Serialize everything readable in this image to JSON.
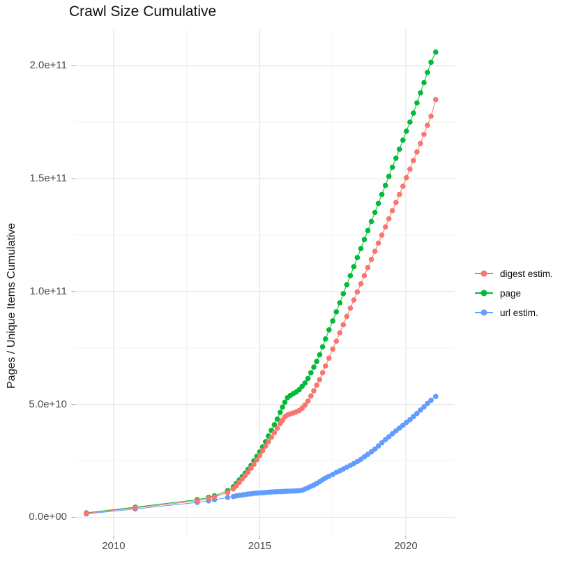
{
  "title": "Crawl Size Cumulative",
  "y_axis_title": "Pages / Unique Items Cumulative",
  "colors": {
    "digest": "#F8766D",
    "page": "#00BA38",
    "url": "#619CFF",
    "grid_major": "#E5E5E5",
    "grid_minor": "#F2F2F2",
    "tick_mark": "#B3B3B3",
    "axis_text": "#4D4D4D",
    "title_text": "#111111"
  },
  "chart_data": {
    "type": "scatter",
    "title": "Crawl Size Cumulative",
    "xlabel": "",
    "ylabel": "Pages / Unique Items Cumulative",
    "legend_position": "right",
    "grid": true,
    "xlim": [
      2008.69,
      2021.67
    ],
    "ylim_e9": [
      -8.2,
      216.1
    ],
    "x_ticks": {
      "values": [
        2010,
        2015,
        2020
      ],
      "labels": [
        "2010",
        "2015",
        "2020"
      ]
    },
    "x_minor": [
      2012.5,
      2017.5
    ],
    "y_ticks": {
      "values_e9": [
        0,
        50,
        100,
        150,
        200
      ],
      "labels": [
        "0.0e+00",
        "5.0e+10",
        "1.0e+11",
        "1.5e+11",
        "2.0e+11"
      ]
    },
    "y_minor_e9": [
      25,
      75,
      125,
      175
    ],
    "unit_note": "values_e9 are in billions (1e9)",
    "series": [
      {
        "name": "digest estim.",
        "color": "#F8766D",
        "points": [
          [
            2009.07,
            1.8
          ],
          [
            2010.74,
            4.2
          ],
          [
            2012.86,
            7.3
          ],
          [
            2013.25,
            8.3
          ],
          [
            2013.45,
            9.0
          ],
          [
            2013.9,
            11.0
          ],
          [
            2014.1,
            12.6
          ],
          [
            2014.2,
            14.0
          ],
          [
            2014.3,
            15.5
          ],
          [
            2014.4,
            17.0
          ],
          [
            2014.5,
            18.5
          ],
          [
            2014.6,
            20.0
          ],
          [
            2014.7,
            21.7
          ],
          [
            2014.8,
            23.5
          ],
          [
            2014.9,
            25.5
          ],
          [
            2015.0,
            27.5
          ],
          [
            2015.1,
            29.5
          ],
          [
            2015.2,
            31.5
          ],
          [
            2015.3,
            33.5
          ],
          [
            2015.4,
            35.5
          ],
          [
            2015.5,
            37.5
          ],
          [
            2015.6,
            39.5
          ],
          [
            2015.7,
            41.5
          ],
          [
            2015.78,
            43.0
          ],
          [
            2015.86,
            44.5
          ],
          [
            2015.95,
            45.3
          ],
          [
            2016.05,
            45.8
          ],
          [
            2016.15,
            46.2
          ],
          [
            2016.25,
            46.7
          ],
          [
            2016.35,
            47.3
          ],
          [
            2016.45,
            48.3
          ],
          [
            2016.55,
            49.7
          ],
          [
            2016.65,
            51.5
          ],
          [
            2016.75,
            53.7
          ],
          [
            2016.85,
            56.0
          ],
          [
            2016.95,
            58.5
          ],
          [
            2017.05,
            61.0
          ],
          [
            2017.15,
            64.0
          ],
          [
            2017.25,
            67.0
          ],
          [
            2017.37,
            70.5
          ],
          [
            2017.5,
            74.5
          ],
          [
            2017.62,
            78.0
          ],
          [
            2017.74,
            81.7
          ],
          [
            2017.86,
            85.3
          ],
          [
            2017.98,
            89.0
          ],
          [
            2018.1,
            92.6
          ],
          [
            2018.22,
            96.2
          ],
          [
            2018.34,
            99.8
          ],
          [
            2018.46,
            103.4
          ],
          [
            2018.58,
            107.0
          ],
          [
            2018.7,
            110.6
          ],
          [
            2018.82,
            114.2
          ],
          [
            2018.94,
            117.8
          ],
          [
            2019.06,
            121.4
          ],
          [
            2019.18,
            125.0
          ],
          [
            2019.3,
            128.6
          ],
          [
            2019.42,
            132.2
          ],
          [
            2019.54,
            135.8
          ],
          [
            2019.66,
            139.4
          ],
          [
            2019.78,
            143.0
          ],
          [
            2019.9,
            146.6
          ],
          [
            2020.02,
            150.4
          ],
          [
            2020.14,
            154.2
          ],
          [
            2020.26,
            158.0
          ],
          [
            2020.38,
            161.8
          ],
          [
            2020.5,
            165.6
          ],
          [
            2020.62,
            169.6
          ],
          [
            2020.74,
            173.6
          ],
          [
            2020.86,
            177.6
          ],
          [
            2021.02,
            185.0
          ]
        ]
      },
      {
        "name": "page",
        "color": "#00BA38",
        "points": [
          [
            2009.07,
            2.0
          ],
          [
            2010.74,
            4.5
          ],
          [
            2012.86,
            7.8
          ],
          [
            2013.25,
            8.8
          ],
          [
            2013.45,
            9.5
          ],
          [
            2013.9,
            11.8
          ],
          [
            2014.1,
            13.5
          ],
          [
            2014.2,
            15.0
          ],
          [
            2014.3,
            16.5
          ],
          [
            2014.4,
            18.0
          ],
          [
            2014.5,
            19.5
          ],
          [
            2014.6,
            21.2
          ],
          [
            2014.7,
            23.0
          ],
          [
            2014.8,
            25.0
          ],
          [
            2014.9,
            27.0
          ],
          [
            2015.0,
            29.0
          ],
          [
            2015.1,
            31.2
          ],
          [
            2015.2,
            33.5
          ],
          [
            2015.3,
            36.0
          ],
          [
            2015.4,
            38.5
          ],
          [
            2015.5,
            41.0
          ],
          [
            2015.6,
            43.5
          ],
          [
            2015.7,
            46.5
          ],
          [
            2015.78,
            48.8
          ],
          [
            2015.86,
            51.0
          ],
          [
            2015.95,
            53.0
          ],
          [
            2016.05,
            54.0
          ],
          [
            2016.15,
            54.8
          ],
          [
            2016.25,
            55.5
          ],
          [
            2016.35,
            56.5
          ],
          [
            2016.45,
            58.0
          ],
          [
            2016.55,
            59.5
          ],
          [
            2016.65,
            61.5
          ],
          [
            2016.75,
            64.0
          ],
          [
            2016.85,
            66.5
          ],
          [
            2016.95,
            69.0
          ],
          [
            2017.05,
            72.0
          ],
          [
            2017.15,
            75.5
          ],
          [
            2017.25,
            79.0
          ],
          [
            2017.37,
            83.0
          ],
          [
            2017.5,
            87.0
          ],
          [
            2017.62,
            91.0
          ],
          [
            2017.74,
            95.0
          ],
          [
            2017.86,
            99.0
          ],
          [
            2017.98,
            103.0
          ],
          [
            2018.1,
            107.0
          ],
          [
            2018.22,
            111.0
          ],
          [
            2018.34,
            115.0
          ],
          [
            2018.46,
            119.0
          ],
          [
            2018.58,
            123.0
          ],
          [
            2018.7,
            127.0
          ],
          [
            2018.82,
            131.0
          ],
          [
            2018.94,
            135.0
          ],
          [
            2019.06,
            139.0
          ],
          [
            2019.18,
            143.0
          ],
          [
            2019.3,
            147.0
          ],
          [
            2019.42,
            151.0
          ],
          [
            2019.54,
            155.0
          ],
          [
            2019.66,
            159.0
          ],
          [
            2019.78,
            163.0
          ],
          [
            2019.9,
            167.0
          ],
          [
            2020.02,
            171.0
          ],
          [
            2020.14,
            175.0
          ],
          [
            2020.26,
            179.0
          ],
          [
            2020.38,
            183.5
          ],
          [
            2020.5,
            188.0
          ],
          [
            2020.62,
            192.5
          ],
          [
            2020.74,
            197.0
          ],
          [
            2020.86,
            201.5
          ],
          [
            2021.02,
            206.0
          ]
        ]
      },
      {
        "name": "url estim.",
        "color": "#619CFF",
        "points": [
          [
            2009.07,
            1.5
          ],
          [
            2010.74,
            3.7
          ],
          [
            2012.86,
            6.6
          ],
          [
            2013.25,
            7.3
          ],
          [
            2013.45,
            7.8
          ],
          [
            2013.9,
            8.8
          ],
          [
            2014.1,
            9.2
          ],
          [
            2014.2,
            9.5
          ],
          [
            2014.3,
            9.7
          ],
          [
            2014.4,
            9.9
          ],
          [
            2014.5,
            10.1
          ],
          [
            2014.6,
            10.3
          ],
          [
            2014.7,
            10.4
          ],
          [
            2014.8,
            10.6
          ],
          [
            2014.9,
            10.7
          ],
          [
            2015.0,
            10.8
          ],
          [
            2015.1,
            10.9
          ],
          [
            2015.2,
            11.0
          ],
          [
            2015.3,
            11.1
          ],
          [
            2015.4,
            11.2
          ],
          [
            2015.5,
            11.3
          ],
          [
            2015.6,
            11.35
          ],
          [
            2015.7,
            11.4
          ],
          [
            2015.78,
            11.45
          ],
          [
            2015.86,
            11.5
          ],
          [
            2015.95,
            11.55
          ],
          [
            2016.05,
            11.6
          ],
          [
            2016.15,
            11.65
          ],
          [
            2016.25,
            11.7
          ],
          [
            2016.35,
            11.8
          ],
          [
            2016.45,
            12.0
          ],
          [
            2016.55,
            12.5
          ],
          [
            2016.65,
            13.1
          ],
          [
            2016.75,
            13.7
          ],
          [
            2016.85,
            14.3
          ],
          [
            2016.95,
            15.0
          ],
          [
            2017.05,
            15.8
          ],
          [
            2017.15,
            16.6
          ],
          [
            2017.25,
            17.4
          ],
          [
            2017.37,
            18.2
          ],
          [
            2017.5,
            19.0
          ],
          [
            2017.62,
            19.9
          ],
          [
            2017.74,
            20.6
          ],
          [
            2017.86,
            21.4
          ],
          [
            2017.98,
            22.2
          ],
          [
            2018.1,
            23.0
          ],
          [
            2018.22,
            23.8
          ],
          [
            2018.34,
            24.7
          ],
          [
            2018.46,
            25.7
          ],
          [
            2018.58,
            26.8
          ],
          [
            2018.7,
            27.9
          ],
          [
            2018.82,
            29.0
          ],
          [
            2018.94,
            30.2
          ],
          [
            2019.06,
            31.6
          ],
          [
            2019.18,
            33.0
          ],
          [
            2019.3,
            34.4
          ],
          [
            2019.42,
            35.7
          ],
          [
            2019.54,
            37.0
          ],
          [
            2019.66,
            38.3
          ],
          [
            2019.78,
            39.5
          ],
          [
            2019.9,
            40.8
          ],
          [
            2020.02,
            42.0
          ],
          [
            2020.14,
            43.2
          ],
          [
            2020.26,
            44.6
          ],
          [
            2020.38,
            46.0
          ],
          [
            2020.5,
            47.5
          ],
          [
            2020.62,
            48.9
          ],
          [
            2020.74,
            50.4
          ],
          [
            2020.86,
            51.8
          ],
          [
            2021.02,
            53.5
          ]
        ]
      }
    ]
  }
}
